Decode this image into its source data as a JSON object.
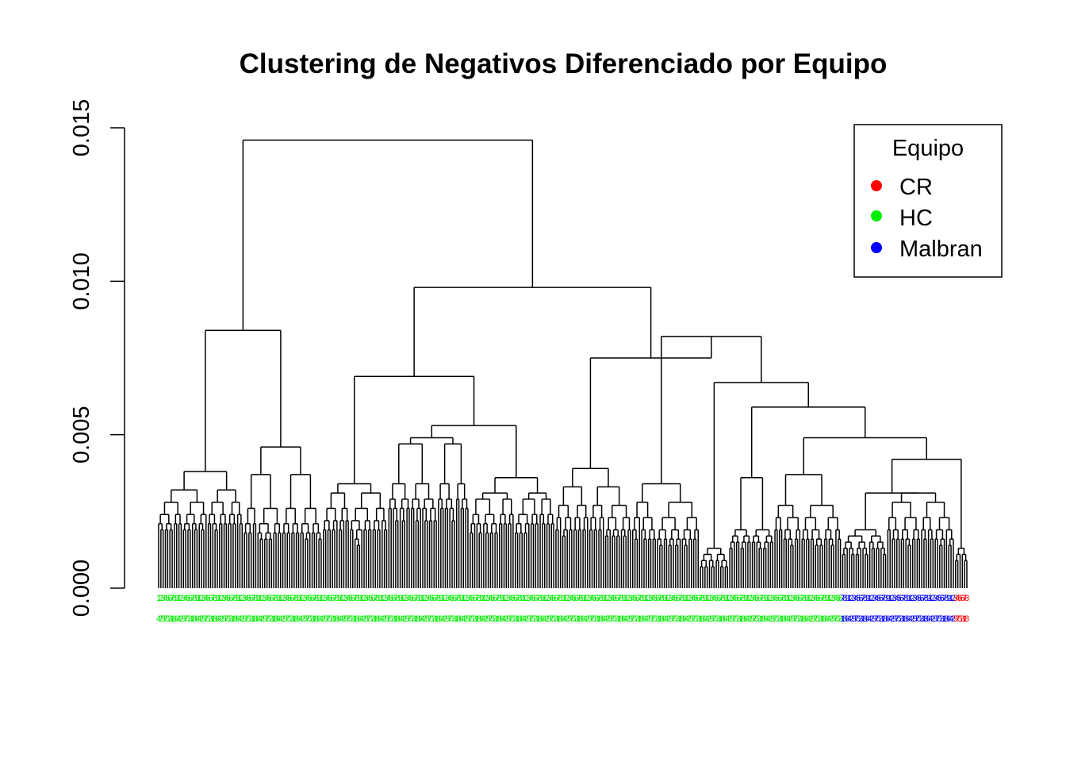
{
  "chart_data": {
    "type": "dendrogram",
    "title": "Clustering de Negativos Diferenciado por Equipo",
    "xlabel": "",
    "ylabel": "",
    "ylim": [
      0,
      0.015
    ],
    "y_ticks": [
      "0.000",
      "0.005",
      "0.010",
      "0.015"
    ],
    "y_tick_values": [
      0,
      0.005,
      0.01,
      0.015
    ],
    "legend": {
      "title": "Equipo",
      "position": "top-right",
      "entries": [
        {
          "label": "CR",
          "color": "#ff0000"
        },
        {
          "label": "HC",
          "color": "#00ee00"
        },
        {
          "label": "Malbran",
          "color": "#0000ff"
        }
      ]
    },
    "groups": [
      {
        "equipo": "HC",
        "leaves": 38,
        "heights": [
          0.0038,
          0.0032,
          0.0028,
          0.0024,
          0.0021,
          0.0019,
          0.0017,
          0.0015,
          0.0013,
          0.0011,
          0.0009
        ]
      },
      {
        "equipo": "HC",
        "leaves": 35,
        "heights": [
          0.0046,
          0.0037,
          0.0026,
          0.0021,
          0.0018,
          0.0016,
          0.0014,
          0.0012,
          0.001
        ]
      },
      {
        "equipo": "HC",
        "leaves": 29,
        "heights": [
          0.0034,
          0.0031,
          0.0026,
          0.0022,
          0.0019,
          0.0016,
          0.0014,
          0.0012,
          0.001
        ]
      },
      {
        "equipo": "HC",
        "leaves": 36,
        "heights": [
          0.0049,
          0.0047,
          0.0034,
          0.0029,
          0.0026,
          0.0022,
          0.0019,
          0.0016,
          0.0014,
          0.0012,
          0.001
        ]
      },
      {
        "equipo": "HC",
        "leaves": 38,
        "heights": [
          0.0036,
          0.0031,
          0.0029,
          0.0024,
          0.0021,
          0.0018,
          0.0016,
          0.0014,
          0.0012,
          0.001
        ]
      },
      {
        "equipo": "HC",
        "leaves": 34,
        "heights": [
          0.0039,
          0.0033,
          0.0027,
          0.0023,
          0.0019,
          0.0017,
          0.0015,
          0.0013,
          0.0011,
          0.0009
        ]
      },
      {
        "equipo": "HC",
        "leaves": 30,
        "heights": [
          0.0034,
          0.0028,
          0.0023,
          0.0019,
          0.0016,
          0.0014,
          0.0012,
          0.001
        ]
      },
      {
        "equipo": "HC",
        "leaves": 13,
        "heights": [
          0.0013,
          0.0011,
          0.0009,
          0.0007,
          0.0005,
          0.0003
        ]
      },
      {
        "equipo": "HC",
        "leaves": 20,
        "heights": [
          0.0036,
          0.0019,
          0.0017,
          0.0015,
          0.0013,
          0.0011,
          0.0009
        ]
      },
      {
        "equipo": "HC",
        "leaves": 30,
        "heights": [
          0.0037,
          0.0027,
          0.0023,
          0.0019,
          0.0016,
          0.0014,
          0.0012,
          0.001,
          0.0008,
          0.0006
        ]
      },
      {
        "equipo": "Malbran",
        "leaves": 20,
        "heights": [
          0.0019,
          0.0017,
          0.0015,
          0.0013,
          0.0011,
          0.0009
        ]
      },
      {
        "equipo": "Malbran",
        "leaves": 30,
        "heights": [
          0.0031,
          0.0028,
          0.0023,
          0.0019,
          0.0016,
          0.0014,
          0.0012,
          0.001
        ]
      },
      {
        "equipo": "CR",
        "leaves": 6,
        "heights": [
          0.0013,
          0.0011,
          0.0009,
          0.0007
        ]
      }
    ],
    "merges": [
      {
        "a": 0,
        "b": 1,
        "height": 0.0084
      },
      {
        "a": 3,
        "b": 4,
        "height": 0.0053
      },
      {
        "a": 2,
        "b": "m1",
        "height": 0.0069
      },
      {
        "a": 10,
        "b": 11,
        "height": 0.0031
      },
      {
        "a": "m3",
        "b": 12,
        "height": 0.0042
      },
      {
        "a": 9,
        "b": "m4",
        "height": 0.0049
      },
      {
        "a": 8,
        "b": "m5",
        "height": 0.0059
      },
      {
        "a": 7,
        "b": "m6",
        "height": 0.0067
      },
      {
        "a": 6,
        "b": "m7",
        "height": 0.0082
      },
      {
        "a": 5,
        "b": "m8",
        "height": 0.0075
      },
      {
        "a": "m2",
        "b": "m9",
        "height": 0.0098
      },
      {
        "a": "m0",
        "b": "m10",
        "height": 0.0146
      }
    ],
    "leaf_label_text": [
      "1",
      "2",
      "3",
      "4",
      "5",
      "6",
      "7",
      "8",
      "9"
    ]
  }
}
